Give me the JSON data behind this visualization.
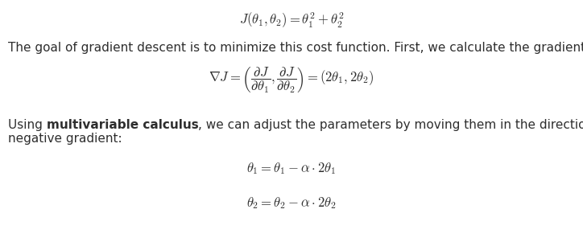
{
  "background_color": "#ffffff",
  "fig_width": 7.24,
  "fig_height": 3.01,
  "dpi": 100,
  "formula_top": "$J(\\theta_1, \\theta_2) = \\theta_1^2 + \\theta_2^2$",
  "text_line1": "The goal of gradient descent is to minimize this cost function. First, we calculate the gradient:",
  "formula_gradient": "$\\nabla J = \\left( \\dfrac{\\partial J}{\\partial \\theta_1}, \\dfrac{\\partial J}{\\partial \\theta_2} \\right) = (2\\theta_1, 2\\theta_2)$",
  "text_normal1": "Using ",
  "text_bold": "multivariable calculus",
  "text_normal2": ", we can adjust the parameters by moving them in the direction of the",
  "text_line3": "negative gradient:",
  "formula_update1": "$\\theta_1 = \\theta_1 - \\alpha \\cdot 2\\theta_1$",
  "formula_update2": "$\\theta_2 = \\theta_2 - \\alpha \\cdot 2\\theta_2$",
  "text_color": "#2e2e2e",
  "font_size_formula": 12,
  "font_size_text": 11
}
